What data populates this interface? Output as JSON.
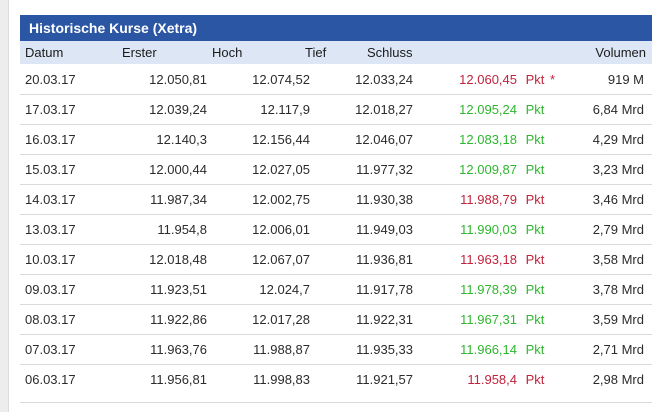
{
  "panel": {
    "title": "Historische Kurse (Xetra)"
  },
  "table": {
    "columns": [
      "Datum",
      "Erster",
      "Hoch",
      "Tief",
      "Schluss",
      "Volumen"
    ],
    "rows": [
      {
        "datum": "20.03.17",
        "erster": "12.050,81",
        "hoch": "12.074,52",
        "tief": "12.033,24",
        "schluss": "12.060,45",
        "unit": "Pkt",
        "star": "*",
        "trend": "down",
        "volumen": "919 M"
      },
      {
        "datum": "17.03.17",
        "erster": "12.039,24",
        "hoch": "12.117,9",
        "tief": "12.018,27",
        "schluss": "12.095,24",
        "unit": "Pkt",
        "star": "",
        "trend": "up",
        "volumen": "6,84 Mrd"
      },
      {
        "datum": "16.03.17",
        "erster": "12.140,3",
        "hoch": "12.156,44",
        "tief": "12.046,07",
        "schluss": "12.083,18",
        "unit": "Pkt",
        "star": "",
        "trend": "up",
        "volumen": "4,29 Mrd"
      },
      {
        "datum": "15.03.17",
        "erster": "12.000,44",
        "hoch": "12.027,05",
        "tief": "11.977,32",
        "schluss": "12.009,87",
        "unit": "Pkt",
        "star": "",
        "trend": "up",
        "volumen": "3,23 Mrd"
      },
      {
        "datum": "14.03.17",
        "erster": "11.987,34",
        "hoch": "12.002,75",
        "tief": "11.930,38",
        "schluss": "11.988,79",
        "unit": "Pkt",
        "star": "",
        "trend": "down",
        "volumen": "3,46 Mrd"
      },
      {
        "datum": "13.03.17",
        "erster": "11.954,8",
        "hoch": "12.006,01",
        "tief": "11.949,03",
        "schluss": "11.990,03",
        "unit": "Pkt",
        "star": "",
        "trend": "up",
        "volumen": "2,79 Mrd"
      },
      {
        "datum": "10.03.17",
        "erster": "12.018,48",
        "hoch": "12.067,07",
        "tief": "11.936,81",
        "schluss": "11.963,18",
        "unit": "Pkt",
        "star": "",
        "trend": "down",
        "volumen": "3,58 Mrd"
      },
      {
        "datum": "09.03.17",
        "erster": "11.923,51",
        "hoch": "12.024,7",
        "tief": "11.917,78",
        "schluss": "11.978,39",
        "unit": "Pkt",
        "star": "",
        "trend": "up",
        "volumen": "3,78 Mrd"
      },
      {
        "datum": "08.03.17",
        "erster": "11.922,86",
        "hoch": "12.017,28",
        "tief": "11.922,31",
        "schluss": "11.967,31",
        "unit": "Pkt",
        "star": "",
        "trend": "up",
        "volumen": "3,59 Mrd"
      },
      {
        "datum": "07.03.17",
        "erster": "11.963,76",
        "hoch": "11.988,87",
        "tief": "11.935,33",
        "schluss": "11.966,14",
        "unit": "Pkt",
        "star": "",
        "trend": "up",
        "volumen": "2,71 Mrd"
      },
      {
        "datum": "06.03.17",
        "erster": "11.956,81",
        "hoch": "11.998,83",
        "tief": "11.921,57",
        "schluss": "11.958,4",
        "unit": "Pkt",
        "star": "",
        "trend": "down",
        "volumen": "2,98 Mrd"
      }
    ]
  },
  "colors": {
    "title_bar_bg": "#2b56a3",
    "title_text": "#ffffff",
    "header_row_bg": "#dce6f5",
    "positive": "#2eb72e",
    "negative": "#c2233c",
    "row_divider": "#dadada",
    "cell_text": "#2b2b2b"
  }
}
